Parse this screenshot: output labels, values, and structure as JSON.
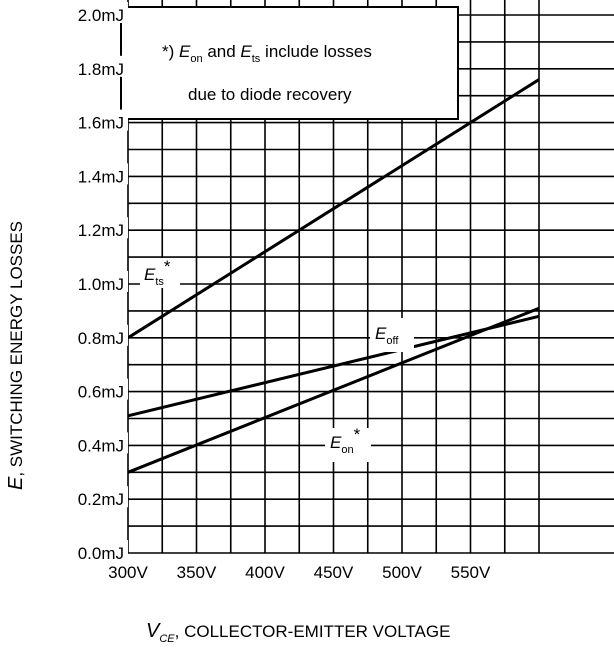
{
  "chart_data": {
    "type": "line",
    "xlabel_var": "V",
    "xlabel_sub": "CE",
    "xlabel_text": ", COLLECTOR-EMITTER VOLTAGE",
    "ylabel_var": "E",
    "ylabel_text": ", SWITCHING ENERGY LOSSES",
    "x_ticks": [
      "300V",
      "350V",
      "400V",
      "450V",
      "500V",
      "550V"
    ],
    "y_ticks": [
      "0.0mJ",
      "0.2mJ",
      "0.4mJ",
      "0.6mJ",
      "0.8mJ",
      "1.0mJ",
      "1.2mJ",
      "1.4mJ",
      "1.6mJ",
      "1.8mJ",
      "2.0mJ"
    ],
    "xlim": [
      300,
      600
    ],
    "ylim": [
      0.0,
      2.0
    ],
    "grid": true,
    "series": [
      {
        "name": "Ets*",
        "label_main": "E",
        "label_sub": "ts",
        "label_suffix": "*",
        "x": [
          300,
          600
        ],
        "y": [
          0.8,
          1.76
        ]
      },
      {
        "name": "Eoff",
        "label_main": "E",
        "label_sub": "off",
        "label_suffix": "",
        "x": [
          300,
          600
        ],
        "y": [
          0.51,
          0.88
        ]
      },
      {
        "name": "Eon*",
        "label_main": "E",
        "label_sub": "on",
        "label_suffix": "*",
        "x": [
          300,
          600
        ],
        "y": [
          0.3,
          0.91
        ]
      }
    ],
    "annotation": {
      "prefix": "*) ",
      "e1": "E",
      "e1_sub": "on",
      "mid": " and ",
      "e2": "E",
      "e2_sub": "ts",
      "line1_rest": " include losses",
      "line2": "due to diode recovery"
    }
  }
}
